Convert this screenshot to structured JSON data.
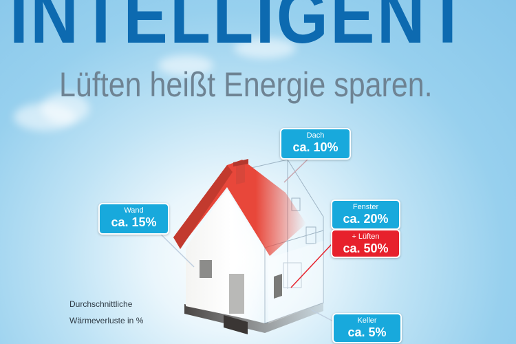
{
  "headline": "INTELLIGENT",
  "subline": "Lüften heißt Energie sparen.",
  "callouts": {
    "dach": {
      "label": "Dach",
      "value": "ca. 10%"
    },
    "wand": {
      "label": "Wand",
      "value": "ca. 15%"
    },
    "fenster": {
      "label": "Fenster",
      "value": "ca. 20%"
    },
    "lueften": {
      "label": "+ Lüften",
      "value": "ca. 50%"
    },
    "keller": {
      "label": "Keller",
      "value": "ca. 5%"
    }
  },
  "note": {
    "line1": "Durchschnittliche",
    "line2": "Wärmeverluste in %"
  },
  "colors": {
    "headline": "#0d6ab0",
    "callout": "#18a9dc",
    "callout_highlight": "#e7212c",
    "roof": "#e8473a"
  }
}
